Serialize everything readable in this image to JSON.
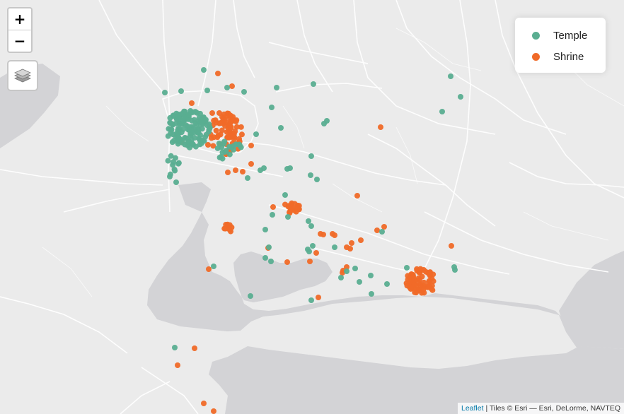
{
  "map": {
    "zoom_in_label": "+",
    "zoom_out_label": "−",
    "layers_icon": "layers-icon"
  },
  "legend": {
    "items": [
      {
        "label": "Temple",
        "color": "#5aae91"
      },
      {
        "label": "Shrine",
        "color": "#f06a28"
      }
    ]
  },
  "attribution": {
    "link": "Leaflet",
    "text": "| Tiles © Esri — Esri, DeLorme, NAVTEQ"
  },
  "colors": {
    "land": "#ebebeb",
    "water": "#d2d2d4",
    "road": "#ffffff"
  }
}
